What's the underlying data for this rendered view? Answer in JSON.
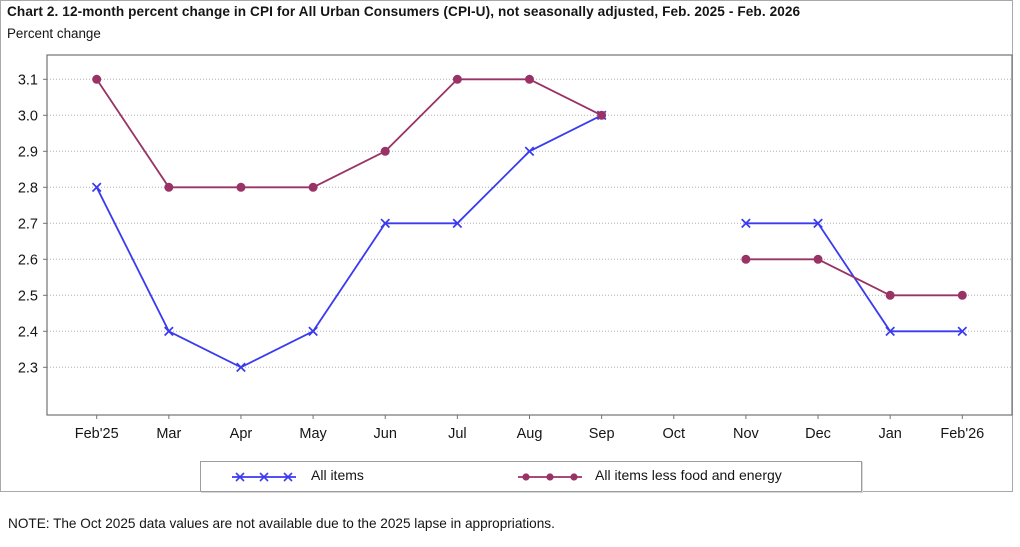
{
  "header": {
    "title": "Chart 2. 12-month percent change in CPI for All Urban Consumers (CPI-U), not seasonally adjusted, Feb. 2025 - Feb. 2026",
    "subtitle": "Percent change"
  },
  "note": "NOTE: The Oct 2025 data values are not available due to the 2025 lapse in appropriations.",
  "chart_data": {
    "type": "line",
    "title": "Chart 2. 12-month percent change in CPI for All Urban Consumers (CPI-U), not seasonally adjusted, Feb. 2025 - Feb. 2026",
    "ylabel": "Percent change",
    "xlabel": "",
    "categories": [
      "Feb'25",
      "Mar",
      "Apr",
      "May",
      "Jun",
      "Jul",
      "Aug",
      "Sep",
      "Oct",
      "Nov",
      "Dec",
      "Jan",
      "Feb'26"
    ],
    "series": [
      {
        "name": "All items",
        "color": "#3a3af0",
        "marker": "x",
        "values": [
          2.8,
          2.4,
          2.3,
          2.4,
          2.7,
          2.7,
          2.9,
          3.0,
          null,
          2.7,
          2.7,
          2.4,
          2.4
        ]
      },
      {
        "name": "All items less food and energy",
        "color": "#993366",
        "marker": "circle",
        "values": [
          3.1,
          2.8,
          2.8,
          2.8,
          2.9,
          3.1,
          3.1,
          3.0,
          null,
          2.6,
          2.6,
          2.5,
          2.5
        ]
      }
    ],
    "y_ticks": [
      3.1,
      3.0,
      2.9,
      2.8,
      2.7,
      2.6,
      2.5,
      2.4,
      2.3
    ],
    "ylim": [
      2.17,
      3.17
    ],
    "grid": true,
    "gridline_color": "#b0b0b0",
    "frame_color": "#737373",
    "legend_position": "bottom",
    "missing_categories": [
      "Oct"
    ]
  }
}
